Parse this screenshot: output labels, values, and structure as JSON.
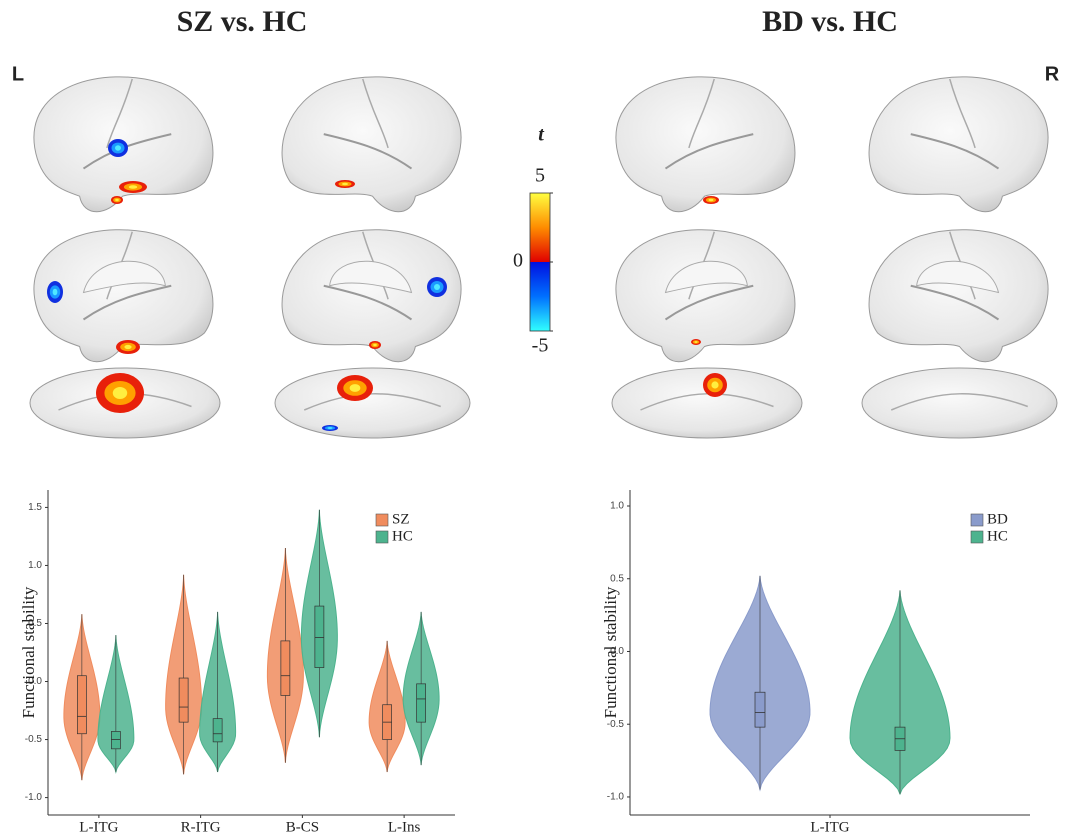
{
  "figure": {
    "left_title": "SZ vs. HC",
    "right_title": "BD vs. HC",
    "left_hemisphere": "L",
    "right_hemisphere": "R",
    "colorbar": {
      "label": "t",
      "lim": [
        -5,
        5
      ],
      "ticks": [
        5,
        0,
        -5
      ]
    }
  },
  "chart_data": [
    {
      "type": "violin",
      "y_label": "Functional stability",
      "categories": [
        "L-ITG",
        "R-ITG",
        "B-CS",
        "L-Ins"
      ],
      "ylim": [
        -1.15,
        1.65
      ],
      "yticks": [
        {
          "value": -1,
          "label": "-1.0"
        },
        -0.5,
        {
          "value": 0,
          "label": "0.0"
        },
        0.5,
        {
          "value": 1,
          "label": "1.0"
        },
        1.5
      ],
      "series": [
        {
          "name": "SZ",
          "color": "#f08c5e",
          "min": [
            -0.85,
            -0.8,
            -0.7,
            -0.78
          ],
          "q1": [
            -0.45,
            -0.35,
            -0.12,
            -0.5
          ],
          "median": [
            -0.3,
            -0.22,
            0.05,
            -0.35
          ],
          "q3": [
            0.05,
            0.03,
            0.35,
            -0.2
          ],
          "max": [
            0.58,
            0.92,
            1.15,
            0.35
          ]
        },
        {
          "name": "HC",
          "color": "#4db38e",
          "min": [
            -0.78,
            -0.78,
            -0.48,
            -0.72
          ],
          "q1": [
            -0.58,
            -0.52,
            0.12,
            -0.35
          ],
          "median": [
            -0.5,
            -0.45,
            0.38,
            -0.15
          ],
          "q3": [
            -0.43,
            -0.32,
            0.65,
            -0.02
          ],
          "max": [
            0.4,
            0.6,
            1.48,
            0.6
          ]
        }
      ]
    },
    {
      "type": "violin",
      "y_label": "Functional stability",
      "categories": [
        "L-ITG"
      ],
      "ylim": [
        -1.124,
        1.11
      ],
      "yticks": [
        {
          "value": -1,
          "label": "-1.0"
        },
        -0.5,
        {
          "value": 0,
          "label": "0.0"
        },
        0.5,
        {
          "value": 1,
          "label": "1.0"
        }
      ],
      "series": [
        {
          "name": "BD",
          "color": "#8a9bcb",
          "min": [
            -0.95
          ],
          "q1": [
            -0.52
          ],
          "median": [
            -0.42
          ],
          "q3": [
            -0.28
          ],
          "max": [
            0.52
          ]
        },
        {
          "name": "HC",
          "color": "#4db38e",
          "min": [
            -0.98
          ],
          "q1": [
            -0.68
          ],
          "median": [
            -0.6
          ],
          "q3": [
            -0.52
          ],
          "max": [
            0.42
          ]
        }
      ]
    }
  ]
}
